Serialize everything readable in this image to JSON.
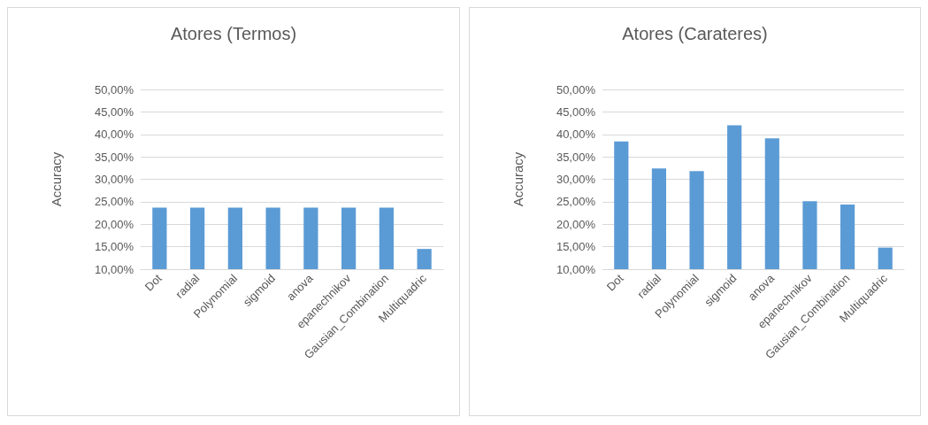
{
  "chart_data": [
    {
      "type": "bar",
      "title": "Atores (Termos)",
      "ylabel": "Accuracy",
      "categories": [
        "Dot",
        "radial",
        "Polynomial",
        "sigmoid",
        "anova",
        "epanechnikov",
        "Gausian_Combination",
        "Multiquadric"
      ],
      "values": [
        23.7,
        23.7,
        23.7,
        23.7,
        23.7,
        23.7,
        23.7,
        14.5
      ],
      "color": "#5b9bd5",
      "ylim": [
        10,
        50
      ],
      "yticks": [
        {
          "value": 10,
          "label": "10,00%"
        },
        {
          "value": 15,
          "label": "15,00%"
        },
        {
          "value": 20,
          "label": "20,00%"
        },
        {
          "value": 25,
          "label": "25,00%"
        },
        {
          "value": 30,
          "label": "30,00%"
        },
        {
          "value": 35,
          "label": "35,00%"
        },
        {
          "value": 40,
          "label": "40,00%"
        },
        {
          "value": 45,
          "label": "45,00%"
        },
        {
          "value": 50,
          "label": "50,00%"
        }
      ],
      "grid": "y"
    },
    {
      "type": "bar",
      "title": "Atores (Carateres)",
      "ylabel": "Accuracy",
      "categories": [
        "Dot",
        "radial",
        "Polynomial",
        "sigmoid",
        "anova",
        "epanechnikov",
        "Gausian_Combination",
        "Multiquadric"
      ],
      "values": [
        38.4,
        32.4,
        31.8,
        42.0,
        39.1,
        25.1,
        24.4,
        14.8
      ],
      "color": "#5b9bd5",
      "ylim": [
        10,
        50
      ],
      "yticks": [
        {
          "value": 10,
          "label": "10,00%"
        },
        {
          "value": 15,
          "label": "15,00%"
        },
        {
          "value": 20,
          "label": "20,00%"
        },
        {
          "value": 25,
          "label": "25,00%"
        },
        {
          "value": 30,
          "label": "30,00%"
        },
        {
          "value": 35,
          "label": "35,00%"
        },
        {
          "value": 40,
          "label": "40,00%"
        },
        {
          "value": 45,
          "label": "45,00%"
        },
        {
          "value": 50,
          "label": "50,00%"
        }
      ],
      "grid": "y"
    }
  ]
}
